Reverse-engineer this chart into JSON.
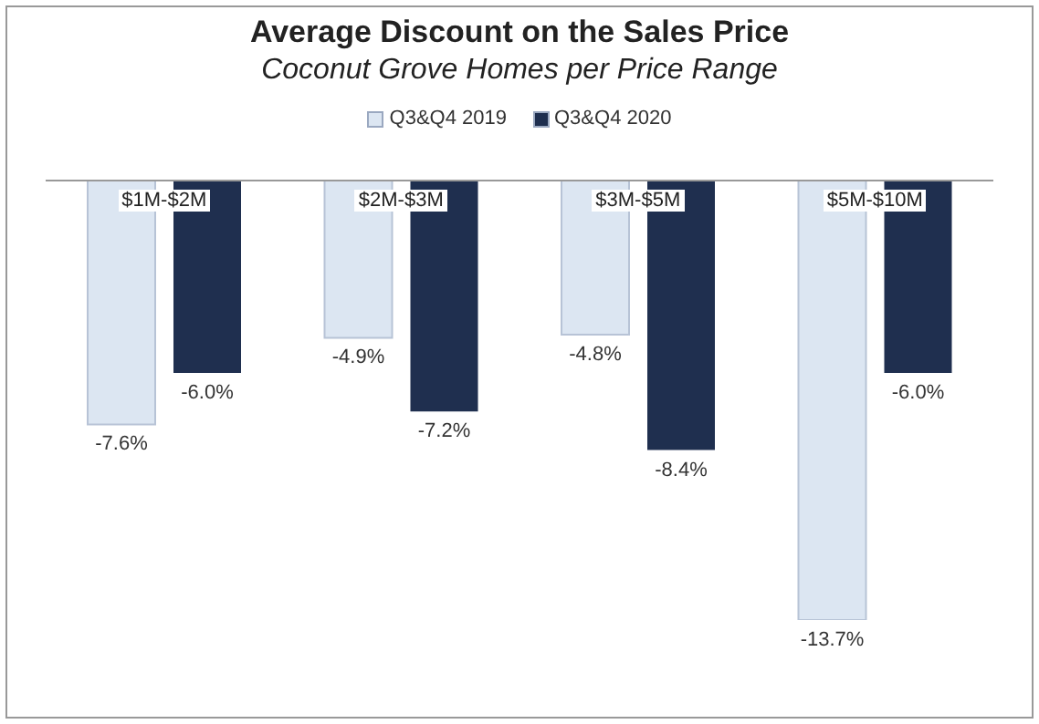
{
  "chart_data": {
    "type": "bar",
    "title": "Average Discount on the Sales Price",
    "subtitle": "Coconut Grove Homes per Price Range",
    "categories": [
      "$1M-$2M",
      "$2M-$3M",
      "$3M-$5M",
      "$5M-$10M"
    ],
    "legend": "top",
    "series": [
      {
        "name": "Q3&Q4 2019",
        "color": "#dce6f2",
        "values": [
          -7.6,
          -4.9,
          -4.8,
          -13.7
        ],
        "value_labels": [
          "-7.6%",
          "-4.9%",
          "-4.8%",
          "-13.7%"
        ]
      },
      {
        "name": "Q3&Q4 2020",
        "color": "#1f2f4f",
        "values": [
          -6.0,
          -7.2,
          -8.4,
          -6.0
        ],
        "value_labels": [
          "-6.0%",
          "-7.2%",
          "-8.4%",
          "-6.0%"
        ]
      }
    ]
  }
}
